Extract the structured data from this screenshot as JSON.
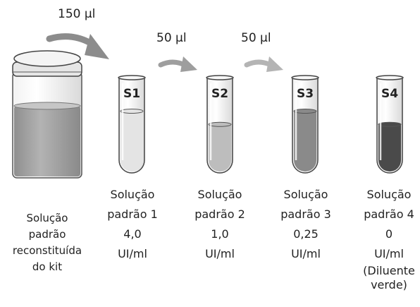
{
  "transfer_volumes": [
    "150 µl",
    "50 µl",
    "50 µl"
  ],
  "stock": {
    "caption": [
      "Solução",
      "padrão",
      "reconstituída",
      "do kit"
    ]
  },
  "tubes": [
    {
      "label": "S1",
      "caption": [
        "Solução",
        "padrão 1",
        "4,0",
        "UI/ml"
      ],
      "fill": 0.7,
      "color": "#e4e4e4"
    },
    {
      "label": "S2",
      "caption": [
        "Solução",
        "padrão 2",
        "1,0",
        "UI/ml"
      ],
      "fill": 0.55,
      "color": "#bdbdbd"
    },
    {
      "label": "S3",
      "caption": [
        "Solução",
        "padrão 3",
        "0,25",
        "UI/ml"
      ],
      "fill": 0.7,
      "color": "#8a8a8a"
    },
    {
      "label": "S4",
      "caption": [
        "Solução",
        "padrão 4",
        "0",
        "UI/ml",
        "(Diluente",
        "verde)"
      ],
      "fill": 0.55,
      "color": "#4a4a4a"
    }
  ]
}
